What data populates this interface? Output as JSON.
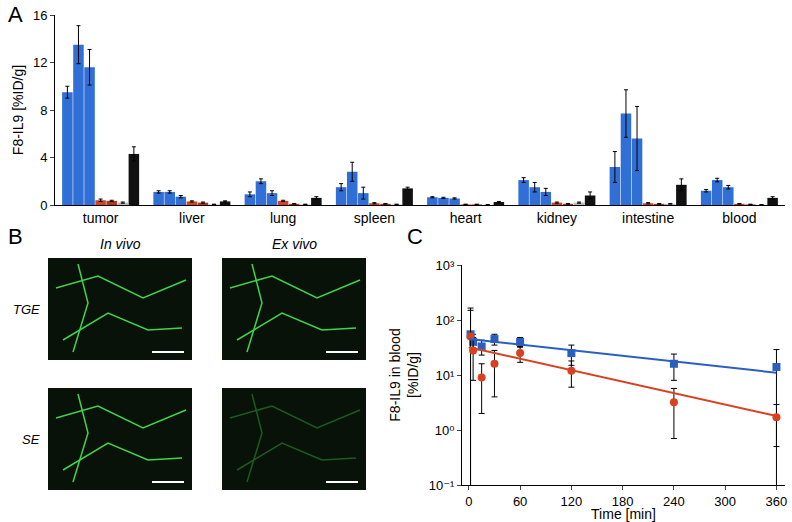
{
  "chart_data": [
    {
      "type": "bar",
      "panel_label": "A",
      "ylabel": "F8-IL9 [%ID/g]",
      "categories": [
        "tumor",
        "liver",
        "lung",
        "spleen",
        "heart",
        "kidney",
        "intestine",
        "blood"
      ],
      "series": [
        {
          "color": "#2f6fd6",
          "values": [
            9.5,
            1.1,
            0.9,
            1.5,
            0.65,
            2.1,
            3.2,
            1.2
          ],
          "error": [
            0.5,
            0.1,
            0.2,
            0.3,
            0.05,
            0.2,
            1.3,
            0.1
          ]
        },
        {
          "color": "#2f6fd6",
          "values": [
            13.5,
            1.1,
            2.0,
            2.8,
            0.6,
            1.5,
            7.7,
            2.1
          ],
          "error": [
            1.6,
            0.1,
            0.2,
            0.8,
            0.05,
            0.4,
            2.0,
            0.15
          ]
        },
        {
          "color": "#2f6fd6",
          "values": [
            11.6,
            0.7,
            1.0,
            1.0,
            0.55,
            1.1,
            5.6,
            1.5
          ],
          "error": [
            1.5,
            0.1,
            0.2,
            0.5,
            0.05,
            0.3,
            2.7,
            0.15
          ]
        },
        {
          "color": "#d8401f",
          "values": [
            0.4,
            0.3,
            0.35,
            0.15,
            0.05,
            0.2,
            0.15,
            0.1
          ],
          "error": [
            0.1,
            0.05,
            0.05,
            0.05,
            0.02,
            0.05,
            0.05,
            0.03
          ]
        },
        {
          "color": "#b5341a",
          "values": [
            0.35,
            0.2,
            0.1,
            0.1,
            0.05,
            0.1,
            0.1,
            0.05
          ],
          "error": [
            0.05,
            0.05,
            0.03,
            0.03,
            0.02,
            0.03,
            0.03,
            0.02
          ]
        },
        {
          "color": "#b8b8b8",
          "values": [
            0.2,
            0.05,
            0.05,
            0.05,
            0.02,
            0.2,
            0.1,
            0.02
          ],
          "error": [
            0.05,
            0.02,
            0.02,
            0.02,
            0.01,
            0.05,
            0.03,
            0.01
          ]
        },
        {
          "color": "#111111",
          "values": [
            4.3,
            0.3,
            0.6,
            1.4,
            0.25,
            0.8,
            1.7,
            0.6
          ],
          "error": [
            0.6,
            0.05,
            0.1,
            0.1,
            0.05,
            0.3,
            0.5,
            0.1
          ]
        }
      ],
      "ylim": [
        0,
        16
      ],
      "yticks": [
        0,
        4,
        8,
        12,
        16
      ],
      "grid": false
    },
    {
      "type": "scatter",
      "panel_label": "C",
      "xlabel": "Time [min]",
      "ylabel": [
        "F8-IL9 in blood",
        "[%ID/g]"
      ],
      "series": [
        {
          "type": "scatter",
          "marker": "square",
          "color": "#2a5fc0",
          "x": [
            2,
            5,
            15,
            30,
            60,
            120,
            240,
            360
          ],
          "values": [
            55,
            40,
            33,
            45,
            40,
            25,
            16,
            14
          ],
          "error": [
            110,
            15,
            10,
            10,
            8,
            10,
            8,
            15
          ]
        },
        {
          "type": "scatter",
          "marker": "circle",
          "color": "#d8401f",
          "x": [
            2,
            5,
            15,
            30,
            60,
            120,
            240,
            360
          ],
          "values": [
            50,
            28,
            9,
            16,
            25,
            12,
            3.2,
            1.7
          ],
          "error": [
            100,
            20,
            7,
            12,
            8,
            6,
            2.5,
            1.2
          ]
        },
        {
          "type": "line",
          "color": "#2a5fc0",
          "x": [
            0,
            360
          ],
          "values": [
            45,
            11
          ]
        },
        {
          "type": "line",
          "color": "#d8401f",
          "x": [
            0,
            360
          ],
          "values": [
            32,
            1.8
          ]
        }
      ],
      "xlim": [
        -8,
        370
      ],
      "xticks": [
        0,
        60,
        120,
        180,
        240,
        300,
        360
      ],
      "ylim": [
        0.1,
        1000
      ],
      "log": "y",
      "yticks": [
        {
          "value": 0.1,
          "label": "10⁻¹"
        },
        {
          "value": 1,
          "label": "10⁰"
        },
        {
          "value": 10,
          "label": "10¹"
        },
        {
          "value": 100,
          "label": "10²"
        },
        {
          "value": 1000,
          "label": "10³"
        }
      ],
      "grid": false
    }
  ],
  "image_panel": {
    "panel_label": "B",
    "columns": [
      "In vivo",
      "Ex vivo"
    ],
    "rows": [
      "TGE",
      "SE"
    ]
  }
}
